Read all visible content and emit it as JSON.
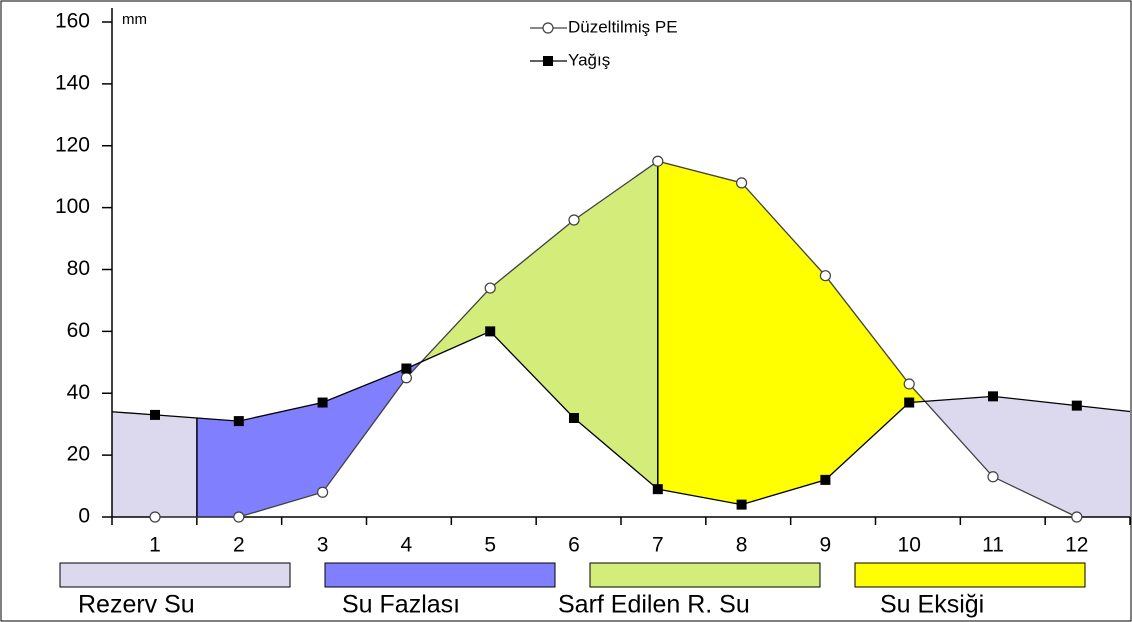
{
  "chart_data": {
    "type": "line",
    "y_unit": "mm",
    "categories": [
      "1",
      "2",
      "3",
      "4",
      "5",
      "6",
      "7",
      "8",
      "9",
      "10",
      "11",
      "12"
    ],
    "series": [
      {
        "name": "Düzeltilmiş PE",
        "color": "#404040",
        "marker": "circle",
        "values": [
          0,
          0,
          8,
          45,
          74,
          96,
          115,
          108,
          78,
          43,
          13,
          0
        ]
      },
      {
        "name": "Yağış",
        "color": "#000000",
        "marker": "square",
        "values": [
          33,
          31,
          37,
          48,
          60,
          32,
          9,
          4,
          12,
          37,
          39,
          36
        ]
      }
    ],
    "areas": [
      {
        "name": "Rezerv Su",
        "color": "#dcd8ee"
      },
      {
        "name": "Su Fazlası",
        "color": "#8080ff"
      },
      {
        "name": "Sarf Edilen R. Su",
        "color": "#d4ec7a"
      },
      {
        "name": "Su Eksiği",
        "color": "#ffff00"
      }
    ],
    "ylim": [
      0,
      160
    ],
    "yticks": [
      0,
      20,
      40,
      60,
      80,
      100,
      120,
      140,
      160
    ]
  }
}
